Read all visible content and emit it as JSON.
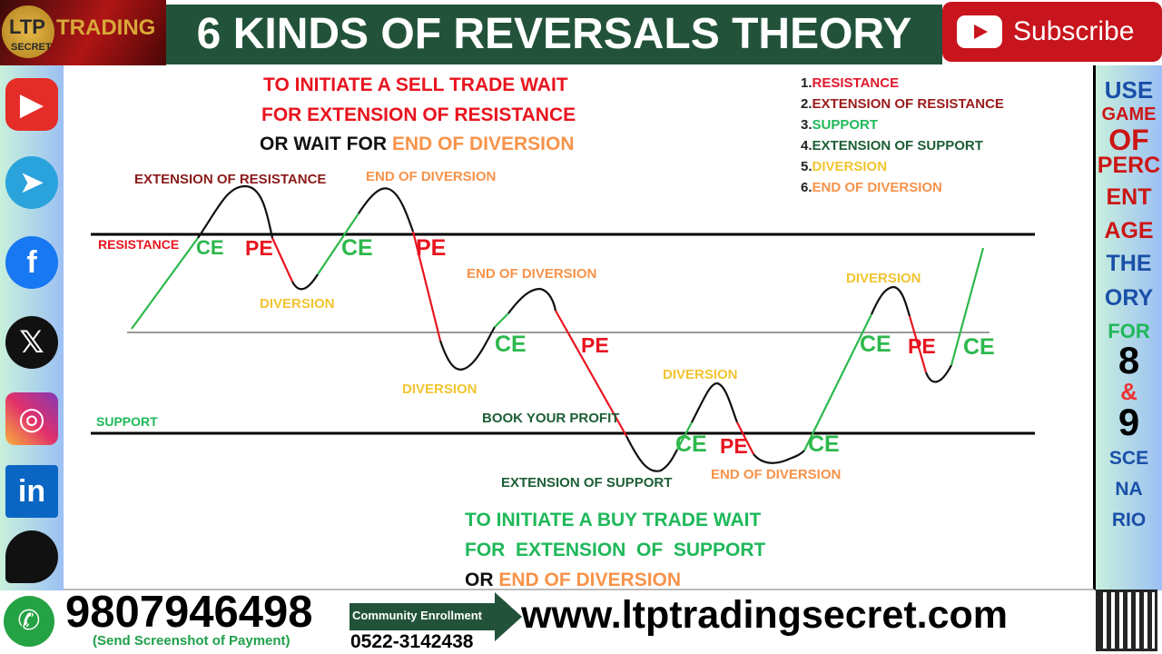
{
  "header": {
    "logo_text": "LTP TRADING SECRET",
    "title": "6 KINDS OF REVERSALS THEORY",
    "subscribe_label": "Subscribe"
  },
  "social": [
    "youtube-icon",
    "telegram-icon",
    "facebook-icon",
    "x-icon",
    "instagram-icon",
    "linkedin-icon",
    "patreon-icon"
  ],
  "sell_note": {
    "line1": "TO INITIATE A SELL TRADE WAIT",
    "line2": "FOR EXTENSION OF RESISTANCE",
    "line3a": "OR WAIT FOR ",
    "line3b": "END OF DIVERSION"
  },
  "buy_note": {
    "line1": "TO INITIATE A BUY TRADE WAIT",
    "line2": "FOR  EXTENSION  OF  SUPPORT",
    "line3a": "OR ",
    "line3b": "END OF DIVERSION"
  },
  "legend": [
    {
      "num": "1.",
      "label": "RESISTANCE",
      "color": "#e0192b"
    },
    {
      "num": "2.",
      "label": "EXTENSION OF RESISTANCE",
      "color": "#9b1b1b"
    },
    {
      "num": "3.",
      "label": "SUPPORT",
      "color": "#1fb85a"
    },
    {
      "num": "4.",
      "label": "EXTENSION OF SUPPORT",
      "color": "#1c5e36"
    },
    {
      "num": "5.",
      "label": "DIVERSION",
      "color": "#f2c431"
    },
    {
      "num": "6.",
      "label": "END OF DIVERSION",
      "color": "#f7934a"
    }
  ],
  "diagram": {
    "resistance": "RESISTANCE",
    "support": "SUPPORT",
    "ext_resistance": "EXTENSION OF RESISTANCE",
    "ext_support": "EXTENSION OF SUPPORT",
    "book_profit": "BOOK YOUR PROFIT",
    "diversion": "DIVERSION",
    "end_of_diversion": "END OF DIVERSION",
    "ce": "CE",
    "pe": "PE"
  },
  "right_banner": [
    "USE",
    "GAME",
    "OF",
    "PERC",
    "ENT",
    "AGE",
    "THE",
    "ORY",
    "FOR",
    "8",
    "&",
    "9",
    "SCE",
    "NA",
    "RIO"
  ],
  "footer": {
    "phone": "9807946498",
    "phone_note": "(Send Screenshot of Payment)",
    "community_label": "Community Enrollment",
    "community_phone": "0522-3142438",
    "website": "www.ltptradingsecret.com"
  },
  "colors": {
    "up": "#2db84c",
    "down": "#e8141f",
    "curve": "#111111",
    "title_bg": "#22533a"
  }
}
